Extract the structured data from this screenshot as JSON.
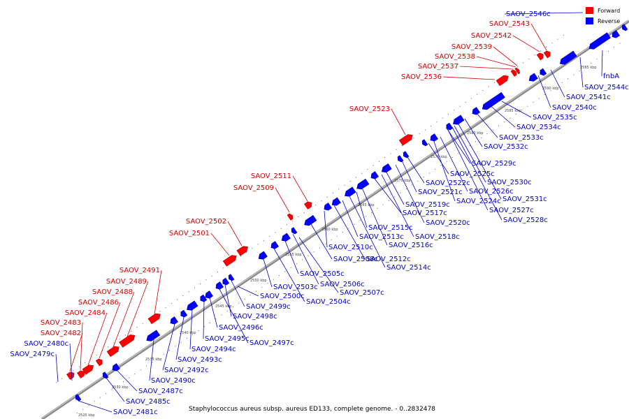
{
  "caption": "Staphylococcus aureus subsp. aureus ED133, complete genome. - 0..2832478",
  "legend": [
    {
      "label": "Forward",
      "color": "#ff0000"
    },
    {
      "label": "Reverse",
      "color": "#0000ff"
    }
  ],
  "colors": {
    "forward": "#ff0000",
    "reverse": "#0000ff",
    "backbone": "#808080",
    "forward_label": "#d40000",
    "reverse_label": "#0000cc"
  },
  "kbp_ticks": [
    "2525 kbp",
    "2530 kbp",
    "2535 kbp",
    "2540 kbp",
    "2545 kbp",
    "2550 kbp",
    "2555 kbp",
    "2560 kbp",
    "2565 kbp",
    "2570 kbp",
    "2575 kbp",
    "2580 kbp",
    "2585 kbp",
    "2590 kbp",
    "2595 kbp"
  ],
  "forward_genes": [
    "SAOV_2482",
    "SAOV_2483",
    "SAOV_2484",
    "SAOV_2486",
    "SAOV_2488",
    "SAOV_2489",
    "SAOV_2491",
    "SAOV_2501",
    "SAOV_2502",
    "SAOV_2509",
    "SAOV_2511",
    "SAOV_2523",
    "SAOV_2536",
    "SAOV_2537",
    "SAOV_2538",
    "SAOV_2539",
    "SAOV_2542",
    "SAOV_2543"
  ],
  "reverse_genes": [
    "SAOV_2479c",
    "SAOV_2480c",
    "SAOV_2481c",
    "SAOV_2485c",
    "SAOV_2487c",
    "SAOV_2490c",
    "SAOV_2492c",
    "SAOV_2493c",
    "SAOV_2494c",
    "SAOV_2495c",
    "SAOV_2496c",
    "SAOV_2497c",
    "SAOV_2498c",
    "SAOV_2499c",
    "SAOV_2500c",
    "SAOV_2503c",
    "SAOV_2504c",
    "SAOV_2505c",
    "SAOV_2506c",
    "SAOV_2507c",
    "SAOV_2508c",
    "SAOV_2510c",
    "SAOV_2512c",
    "SAOV_2513c",
    "SAOV_2514c",
    "SAOV_2515c",
    "SAOV_2516c",
    "SAOV_2517c",
    "SAOV_2518c",
    "SAOV_2519c",
    "SAOV_2520c",
    "SAOV_2521c",
    "SAOV_2522c",
    "SAOV_2524c",
    "SAOV_2525c",
    "SAOV_2526c",
    "SAOV_2527c",
    "SAOV_2528c",
    "SAOV_2529c",
    "SAOV_2530c",
    "SAOV_2531c",
    "SAOV_2532c",
    "SAOV_2533c",
    "SAOV_2534c",
    "SAOV_2535c",
    "SAOV_2540c",
    "SAOV_2541c",
    "SAOV_2544c",
    "SAOV_2546c",
    "fnbA"
  ]
}
